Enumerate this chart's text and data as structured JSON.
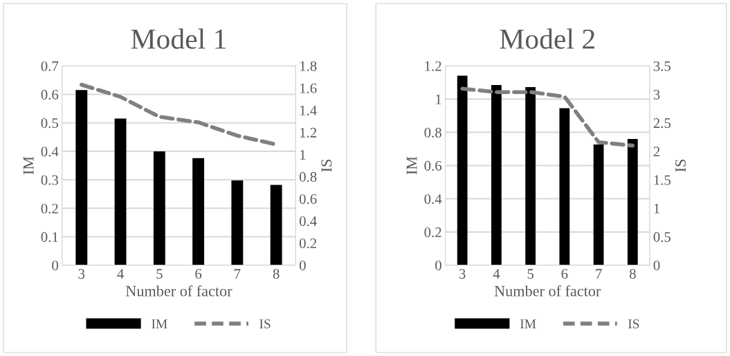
{
  "chart_data": [
    {
      "type": "bar",
      "title": "Model 1",
      "xlabel": "Number of factor",
      "ylabel": "IM",
      "y2label": "IS",
      "categories": [
        "3",
        "4",
        "5",
        "6",
        "7",
        "8"
      ],
      "series": [
        {
          "name": "IM",
          "color": "#000000",
          "values": [
            0.615,
            0.515,
            0.4,
            0.376,
            0.298,
            0.282
          ]
        },
        {
          "name": "IS",
          "type": "line",
          "axis": "y2",
          "color": "#808080",
          "line_style": "dashed",
          "values": [
            1.63,
            1.52,
            1.34,
            1.29,
            1.17,
            1.09
          ]
        }
      ],
      "ylim": [
        0,
        0.7
      ],
      "yticks": [
        0,
        0.1,
        0.2,
        0.3,
        0.4,
        0.5,
        0.6,
        0.7
      ],
      "y2lim": [
        0,
        1.8
      ],
      "y2ticks": [
        0,
        0.2,
        0.4,
        0.6,
        0.8,
        1,
        1.2,
        1.4,
        1.6,
        1.8
      ],
      "grid": "y",
      "legend": "bottom"
    },
    {
      "type": "bar",
      "title": "Model 2",
      "xlabel": "Number of factor",
      "ylabel": "IM",
      "y2label": "IS",
      "categories": [
        "3",
        "4",
        "5",
        "6",
        "7",
        "8"
      ],
      "series": [
        {
          "name": "IM",
          "color": "#000000",
          "values": [
            1.141,
            1.085,
            1.072,
            0.945,
            0.727,
            0.76
          ]
        },
        {
          "name": "IS",
          "type": "line",
          "axis": "y2",
          "color": "#808080",
          "line_style": "dashed",
          "values": [
            3.1,
            3.04,
            3.04,
            2.96,
            2.16,
            2.1
          ]
        }
      ],
      "ylim": [
        0,
        1.2
      ],
      "yticks": [
        0,
        0.2,
        0.4,
        0.6,
        0.8,
        1,
        1.2
      ],
      "y2lim": [
        0,
        3.5
      ],
      "y2ticks": [
        0,
        0.5,
        1,
        1.5,
        2,
        2.5,
        3,
        3.5
      ],
      "grid": "y",
      "legend": "bottom"
    }
  ]
}
